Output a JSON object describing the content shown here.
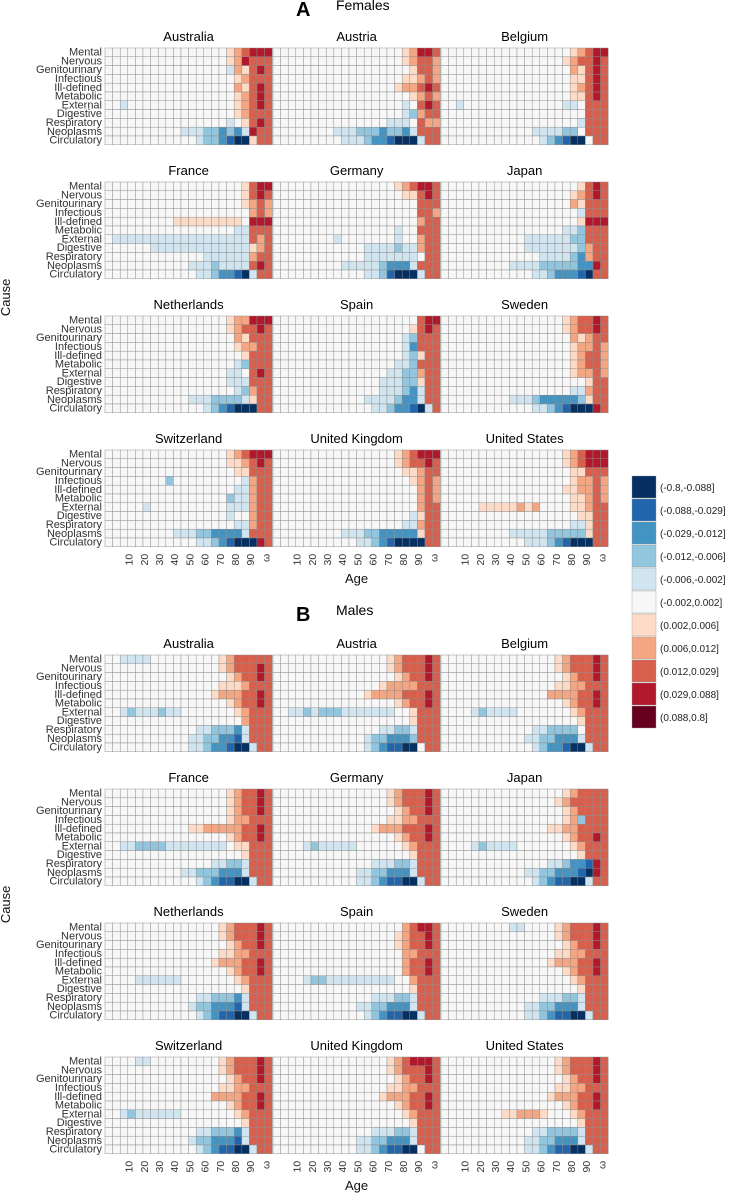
{
  "chart_data": {
    "type": "heatmap",
    "ylabel": "Cause",
    "xlabel": "Age",
    "causes_top_to_bottom": [
      "Mental",
      "Nervous",
      "Genitourinary",
      "Infectious",
      "Ill-defined",
      "Metabolic",
      "External",
      "Digestive",
      "Respiratory",
      "Neoplasms",
      "Circulatory"
    ],
    "age_columns": [
      "0",
      "1",
      "5",
      "10",
      "15",
      "20",
      "25",
      "30",
      "35",
      "40",
      "45",
      "50",
      "55",
      "60",
      "65",
      "70",
      "75",
      "80",
      "85",
      "90",
      "95",
      "ω"
    ],
    "age_tick_labels": [
      "10",
      "20",
      "30",
      "40",
      "50",
      "60",
      "70",
      "80",
      "90",
      "ω"
    ],
    "legend": {
      "bins": [
        {
          "label": "(-0.8,-0.088]",
          "color": "#053061"
        },
        {
          "label": "(-0.088,-0.029]",
          "color": "#2166ac"
        },
        {
          "label": "(-0.029,-0.012]",
          "color": "#4393c3"
        },
        {
          "label": "(-0.012,-0.006]",
          "color": "#92c5de"
        },
        {
          "label": "(-0.006,-0.002]",
          "color": "#d1e5f0"
        },
        {
          "label": "(-0.002,0.002]",
          "color": "#f7f7f7"
        },
        {
          "label": "(0.002,0.006]",
          "color": "#fddbc7"
        },
        {
          "label": "(0.006,0.012]",
          "color": "#f4a582"
        },
        {
          "label": "(0.012,0.029]",
          "color": "#d6604d"
        },
        {
          "label": "(0.029,0.088]",
          "color": "#b2182b"
        },
        {
          "label": "(0.088,0.8]",
          "color": "#67001f"
        }
      ]
    },
    "panels": [
      {
        "letter": "A",
        "subtitle": "Females",
        "facets": [
          {
            "country": "Australia",
            "rows": [
              "0000000000000000000000000000000000000000000000000000000000000000000000000000000000000000000000000000000",
              "0000000000000000000009991010",
              "0000000000000000000008897898",
              "000000000000000000000000000000000000000079",
              "0000000000000000000000000000000000000000798",
              "00000000000000000000000000000000000000000000000000000000000000000000000000000000000000000000000000000000000000000000000000000000000000000000000000000000000000000000000000000000000000000000"
            ]
          }
        ]
      }
    ]
  }
}
